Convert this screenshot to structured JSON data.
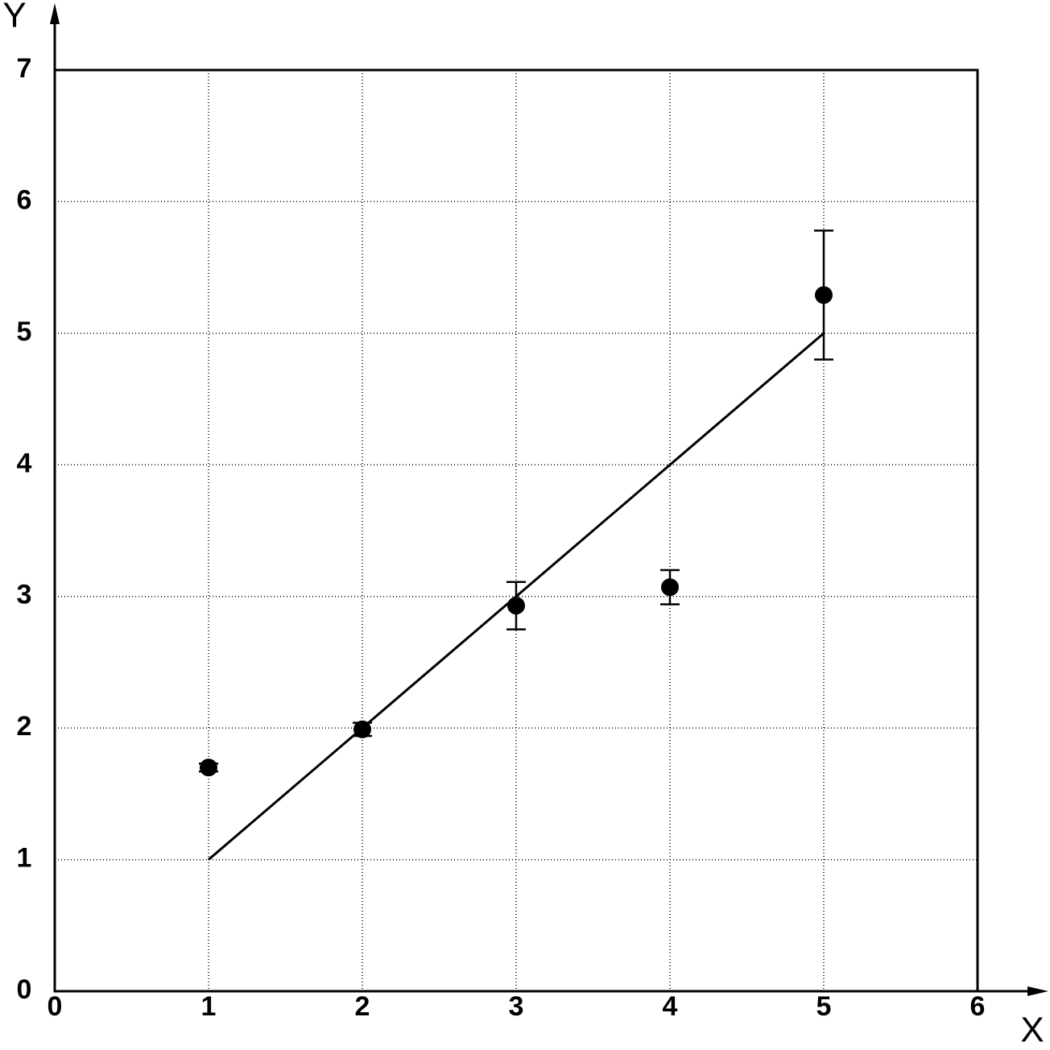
{
  "chart_data": {
    "type": "scatter",
    "x_label": "X",
    "y_label": "Y",
    "xlim": [
      0,
      6
    ],
    "ylim": [
      0,
      7
    ],
    "xticks": [
      0,
      1,
      2,
      3,
      4,
      5,
      6
    ],
    "yticks": [
      0,
      1,
      2,
      3,
      4,
      5,
      6,
      7
    ],
    "grid": true,
    "series": [
      {
        "type": "scatter",
        "color": "#000000",
        "x": [
          1,
          2,
          3,
          4,
          5
        ],
        "values": [
          1.7,
          1.99,
          2.93,
          3.07,
          5.29
        ],
        "errors": [
          0.03,
          0.05,
          0.18,
          0.13,
          0.49
        ]
      },
      {
        "type": "line",
        "color": "#000000",
        "x": [
          1,
          5
        ],
        "values": [
          1,
          5
        ]
      }
    ]
  }
}
